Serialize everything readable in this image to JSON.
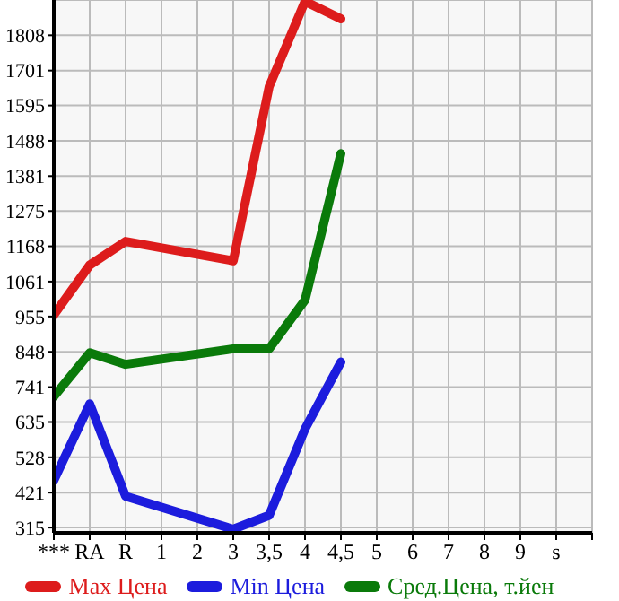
{
  "chart_data": {
    "type": "line",
    "categories": [
      "***",
      "RA",
      "R",
      "1",
      "2",
      "3",
      "3,5",
      "4",
      "4,5",
      "5",
      "6",
      "7",
      "8",
      "9",
      "s"
    ],
    "series": [
      {
        "name": "Max Цена",
        "color": "#dd1c1c",
        "values": [
          960,
          1111,
          1183,
          null,
          null,
          1124,
          1652,
          1911,
          1858,
          null,
          null,
          null,
          null,
          null,
          null
        ]
      },
      {
        "name": "Min Цена",
        "color": "#1c1cdd",
        "values": [
          458,
          690,
          410,
          null,
          null,
          310,
          352,
          614,
          817,
          null,
          null,
          null,
          null,
          null,
          null
        ]
      },
      {
        "name": "Сред.Цена, т.йен",
        "color": "#0a7a0a",
        "values": [
          712,
          845,
          810,
          null,
          null,
          857,
          857,
          1005,
          1449,
          null,
          null,
          null,
          null,
          null,
          null
        ]
      }
    ],
    "ylim": [
      299,
      1915
    ],
    "yticks": [
      315,
      421,
      528,
      635,
      741,
      848,
      955,
      1061,
      1168,
      1275,
      1381,
      1488,
      1595,
      1701,
      1808
    ],
    "grid": true,
    "legend": "bottom",
    "marker": "none",
    "line_style": "solid"
  }
}
